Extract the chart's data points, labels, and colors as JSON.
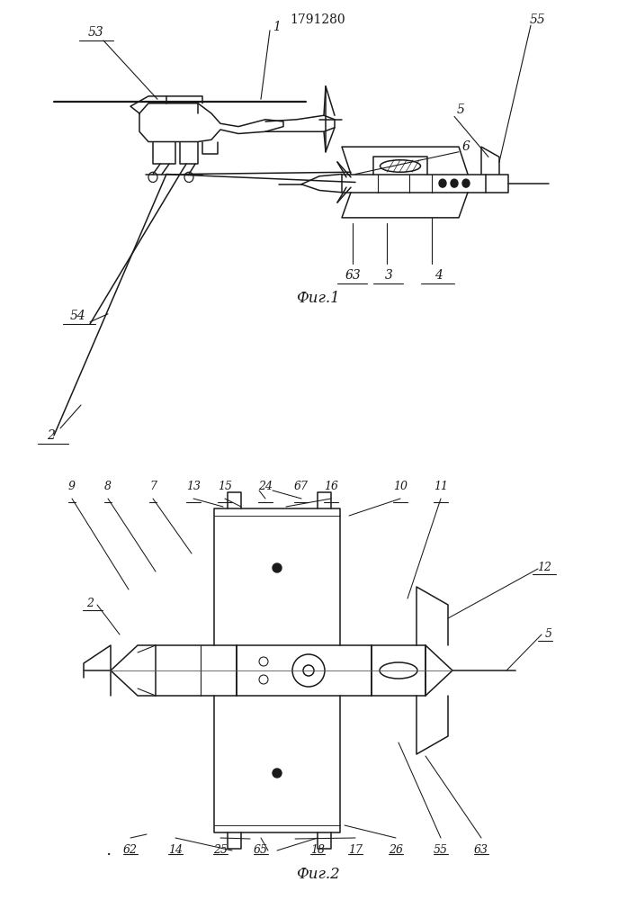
{
  "patent_number": "1791280",
  "fig1_label": "Фиг.1",
  "fig2_label": "Фиг.2",
  "line_color": "#1a1a1a",
  "lw": 1.1
}
